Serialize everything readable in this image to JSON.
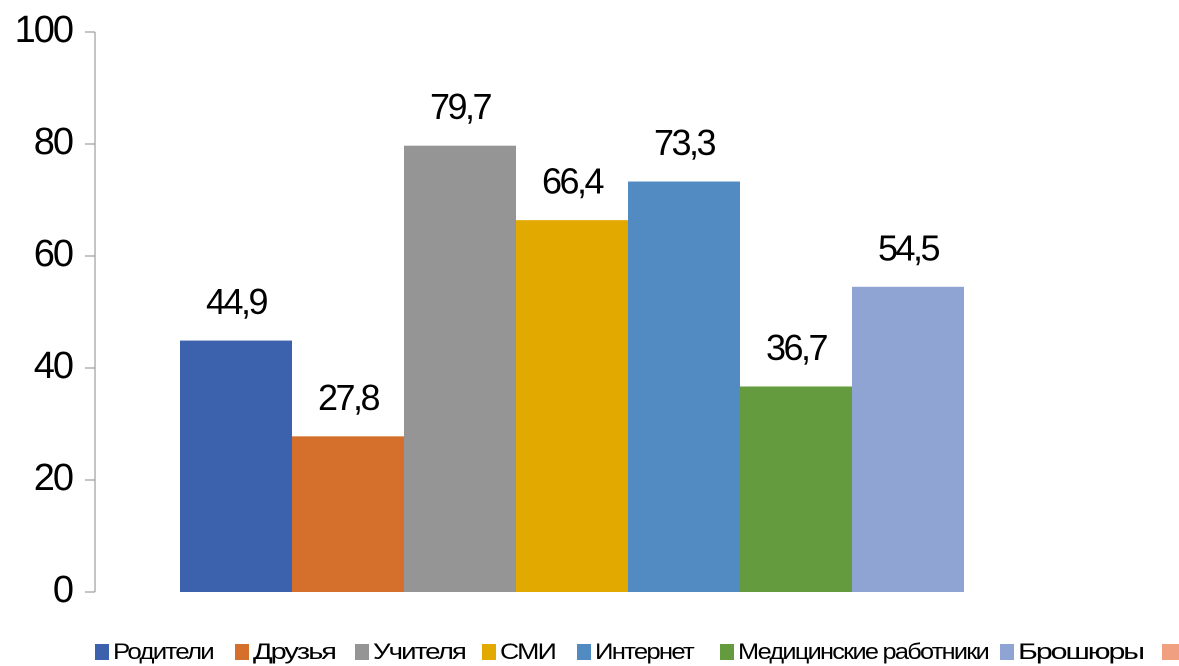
{
  "chart_data": {
    "type": "bar",
    "categories": [
      null
    ],
    "series": [
      {
        "name": "Родители",
        "color": "#3d62ad",
        "values": [
          44.9
        ],
        "value_labels": [
          "44,9"
        ]
      },
      {
        "name": "Друзья",
        "color": "#d4702c",
        "values": [
          27.8
        ],
        "value_labels": [
          "27,8"
        ]
      },
      {
        "name": "Учителя",
        "color": "#959595",
        "values": [
          79.7
        ],
        "value_labels": [
          "79,7"
        ]
      },
      {
        "name": "СМИ",
        "color": "#e2a900",
        "values": [
          66.4
        ],
        "value_labels": [
          "66,4"
        ]
      },
      {
        "name": "Интернет",
        "color": "#518bc1",
        "values": [
          73.3
        ],
        "value_labels": [
          "73,3"
        ]
      },
      {
        "name": "Медицинские работники",
        "color": "#649b3e",
        "values": [
          36.7
        ],
        "value_labels": [
          "36,7"
        ]
      },
      {
        "name": "Брошюры",
        "color": "#90a4d4",
        "values": [
          54.5
        ],
        "value_labels": [
          "54,5"
        ]
      }
    ],
    "ylim": [
      0,
      100
    ],
    "yticks": [
      0,
      20,
      40,
      60,
      80,
      100
    ],
    "legend": "bottom"
  }
}
